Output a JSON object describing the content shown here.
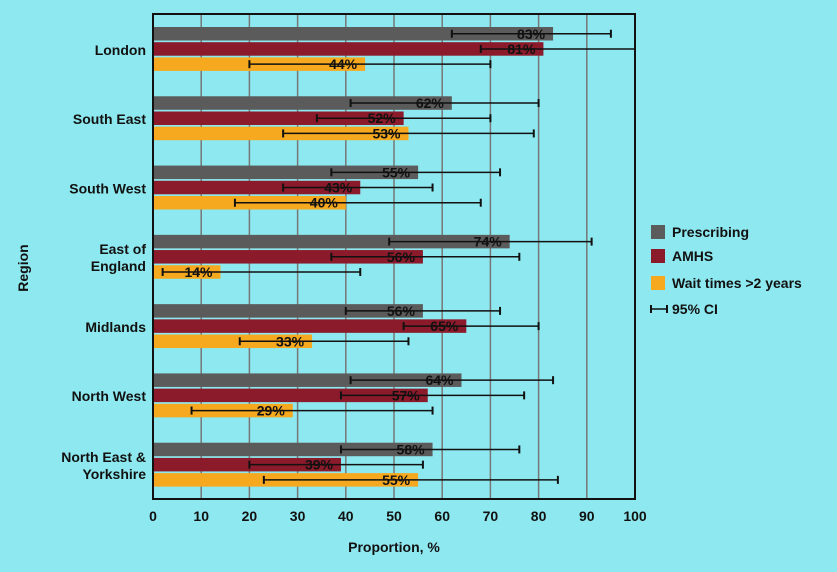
{
  "chart_data": {
    "type": "bar",
    "orientation": "horizontal",
    "title": "",
    "xlabel": "Proportion, %",
    "ylabel": "Region",
    "xlim": [
      0,
      100
    ],
    "xticks": [
      "0",
      "10",
      "20",
      "30",
      "40",
      "50",
      "60",
      "70",
      "80",
      "90",
      "100"
    ],
    "grid": true,
    "legend_position": "right",
    "categories": [
      [
        "London"
      ],
      [
        "South East"
      ],
      [
        "South West"
      ],
      [
        "East of",
        "England"
      ],
      [
        "Midlands"
      ],
      [
        "North West"
      ],
      [
        "North East &",
        "Yorkshire"
      ]
    ],
    "series": [
      {
        "name": "Prescribing",
        "color": "#5b5b5b",
        "values": [
          83,
          62,
          55,
          74,
          56,
          64,
          58
        ],
        "labels": [
          "83%",
          "62%",
          "55%",
          "74%",
          "56%",
          "64%",
          "58%"
        ],
        "ci": [
          [
            62,
            95
          ],
          [
            41,
            80
          ],
          [
            37,
            72
          ],
          [
            49,
            91
          ],
          [
            40,
            72
          ],
          [
            41,
            83
          ],
          [
            39,
            76
          ]
        ]
      },
      {
        "name": "AMHS",
        "color": "#8b1a2b",
        "values": [
          81,
          52,
          43,
          56,
          65,
          57,
          39
        ],
        "labels": [
          "81%",
          "52%",
          "43%",
          "56%",
          "65%",
          "57%",
          "39%"
        ],
        "ci": [
          [
            68,
            100
          ],
          [
            34,
            70
          ],
          [
            27,
            58
          ],
          [
            37,
            76
          ],
          [
            52,
            80
          ],
          [
            39,
            77
          ],
          [
            20,
            56
          ]
        ]
      },
      {
        "name": "Wait times >2 years",
        "color": "#f6a81f",
        "values": [
          44,
          53,
          40,
          14,
          33,
          29,
          55
        ],
        "labels": [
          "44%",
          "53%",
          "40%",
          "14%",
          "33%",
          "29%",
          "55%"
        ],
        "ci": [
          [
            20,
            70
          ],
          [
            27,
            79
          ],
          [
            17,
            68
          ],
          [
            2,
            43
          ],
          [
            18,
            53
          ],
          [
            8,
            58
          ],
          [
            23,
            84
          ]
        ]
      }
    ],
    "ci_legend_label": "95% CI"
  }
}
